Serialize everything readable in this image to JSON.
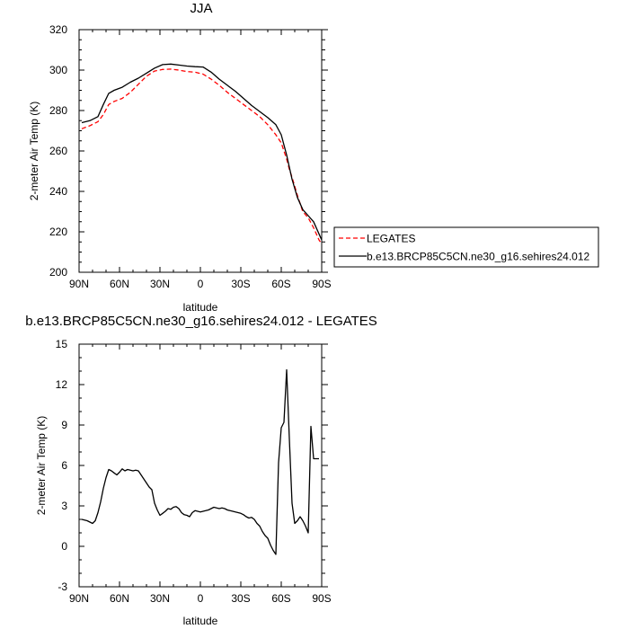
{
  "chart_data": [
    {
      "type": "line",
      "title": "JJA",
      "xlabel": "latitude",
      "ylabel": "2-meter Air Temp (K)",
      "xlim": [
        90,
        -90
      ],
      "ylim": [
        200,
        320
      ],
      "x_ticks": [
        {
          "v": 90,
          "label": "90N"
        },
        {
          "v": 60,
          "label": "60N"
        },
        {
          "v": 30,
          "label": "30N"
        },
        {
          "v": 0,
          "label": "0"
        },
        {
          "v": -30,
          "label": "30S"
        },
        {
          "v": -60,
          "label": "60S"
        },
        {
          "v": -90,
          "label": "90S"
        }
      ],
      "y_ticks": [
        200,
        220,
        240,
        260,
        280,
        300,
        320
      ],
      "legend": {
        "placement": "right",
        "entries": [
          {
            "label": "LEGATES",
            "color": "#ff0000",
            "dash": "dashed"
          },
          {
            "label": "b.e13.BRCP85C5CN.ne30_g16.sehires24.012",
            "color": "#000000",
            "dash": "solid"
          }
        ]
      },
      "series": [
        {
          "name": "LEGATES",
          "color": "#ff0000",
          "dash": "dashed",
          "x": [
            88,
            82,
            76,
            72,
            68,
            64,
            58,
            52,
            46,
            40,
            34,
            28,
            22,
            16,
            10,
            4,
            -2,
            -8,
            -14,
            -20,
            -26,
            -32,
            -38,
            -44,
            -50,
            -56,
            -60,
            -62,
            -64,
            -66,
            -68,
            -72,
            -76,
            -80,
            -84,
            -88,
            -90
          ],
          "y": [
            271,
            272.5,
            274.5,
            278,
            283,
            284.5,
            286,
            289,
            293,
            297,
            299.5,
            300.3,
            300.5,
            300,
            299.3,
            299,
            298,
            295.5,
            292.5,
            289,
            286,
            283,
            280,
            277,
            273,
            268,
            264,
            260,
            256,
            251,
            247,
            238,
            230,
            227,
            222,
            216,
            214
          ]
        },
        {
          "name": "b.e13.BRCP85C5CN.ne30_g16.sehires24.012",
          "color": "#000000",
          "dash": "solid",
          "x": [
            88,
            82,
            76,
            72,
            68,
            64,
            58,
            52,
            46,
            40,
            34,
            28,
            22,
            16,
            10,
            4,
            -2,
            -8,
            -14,
            -20,
            -26,
            -32,
            -38,
            -44,
            -50,
            -56,
            -60,
            -62,
            -64,
            -66,
            -68,
            -72,
            -76,
            -80,
            -84,
            -88,
            -90
          ],
          "y": [
            274,
            275,
            277,
            283,
            288.5,
            290,
            291.5,
            294,
            296,
            298.5,
            301,
            302.7,
            303,
            302.5,
            302,
            301.7,
            301.5,
            299,
            295.5,
            292.5,
            289.5,
            286,
            282.5,
            279.5,
            276.5,
            273,
            268,
            263,
            258,
            252,
            246,
            237,
            231,
            228,
            225,
            219,
            216
          ]
        }
      ]
    },
    {
      "type": "line",
      "title": "b.e13.BRCP85C5CN.ne30_g16.sehires24.012 - LEGATES",
      "xlabel": "latitude",
      "ylabel": "2-meter Air Temp (K)",
      "xlim": [
        90,
        -90
      ],
      "ylim": [
        -3,
        15
      ],
      "x_ticks": [
        {
          "v": 90,
          "label": "90N"
        },
        {
          "v": 60,
          "label": "60N"
        },
        {
          "v": 30,
          "label": "30N"
        },
        {
          "v": 0,
          "label": "0"
        },
        {
          "v": -30,
          "label": "30S"
        },
        {
          "v": -60,
          "label": "60S"
        },
        {
          "v": -90,
          "label": "90S"
        }
      ],
      "y_ticks": [
        -3,
        0,
        3,
        6,
        9,
        12,
        15
      ],
      "series": [
        {
          "color": "#000000",
          "dash": "solid",
          "x": [
            88,
            84,
            80,
            78,
            76,
            74,
            72,
            70,
            68,
            66,
            64,
            62,
            60,
            58,
            56,
            54,
            52,
            50,
            48,
            46,
            44,
            42,
            40,
            38,
            36,
            34,
            32,
            30,
            28,
            26,
            24,
            22,
            20,
            18,
            16,
            14,
            12,
            10,
            8,
            6,
            4,
            2,
            0,
            -2,
            -4,
            -6,
            -8,
            -10,
            -12,
            -14,
            -16,
            -18,
            -20,
            -22,
            -24,
            -26,
            -28,
            -30,
            -32,
            -34,
            -36,
            -38,
            -40,
            -42,
            -44,
            -46,
            -48,
            -50,
            -52,
            -54,
            -56,
            -58,
            -60,
            -62,
            -64,
            -66,
            -68,
            -70,
            -72,
            -74,
            -76,
            -78,
            -80,
            -82,
            -84,
            -86,
            -88
          ],
          "y": [
            2,
            1.9,
            1.7,
            1.9,
            2.5,
            3.3,
            4.3,
            5.1,
            5.7,
            5.6,
            5.45,
            5.3,
            5.5,
            5.75,
            5.6,
            5.7,
            5.65,
            5.6,
            5.65,
            5.6,
            5.3,
            5.0,
            4.7,
            4.4,
            4.2,
            3.2,
            2.7,
            2.3,
            2.45,
            2.6,
            2.8,
            2.75,
            2.9,
            2.95,
            2.8,
            2.5,
            2.35,
            2.3,
            2.2,
            2.5,
            2.65,
            2.6,
            2.55,
            2.6,
            2.65,
            2.7,
            2.8,
            2.9,
            2.85,
            2.8,
            2.85,
            2.8,
            2.7,
            2.65,
            2.6,
            2.55,
            2.5,
            2.45,
            2.35,
            2.2,
            2.1,
            2.15,
            2.0,
            1.7,
            1.5,
            1.1,
            0.8,
            0.6,
            0.1,
            -0.3,
            -0.6,
            6.2,
            8.8,
            9.2,
            13.1,
            8.0,
            3.2,
            1.7,
            1.9,
            2.2,
            1.9,
            1.5,
            1.0,
            8.9,
            6.5,
            6.5,
            6.5
          ]
        }
      ]
    }
  ]
}
